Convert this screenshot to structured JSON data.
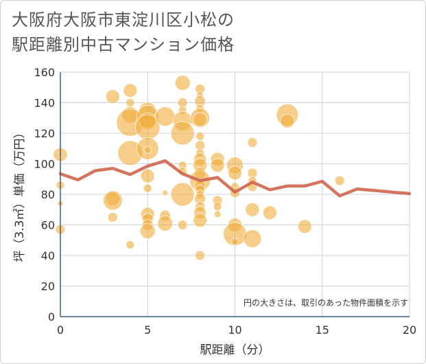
{
  "chart_data": {
    "type": "scatter",
    "title_lines": [
      "大阪府大阪市東淀川区小松の",
      "駅距離別中古マンション価格"
    ],
    "xlabel": "駅距離（分）",
    "ylabel": "坪（3.3㎡）単価（万円）",
    "xlim": [
      0,
      20
    ],
    "ylim": [
      0,
      160
    ],
    "x_ticks": [
      "0",
      "5",
      "10",
      "15",
      "20"
    ],
    "y_ticks": [
      "0",
      "20",
      "40",
      "60",
      "80",
      "100",
      "120",
      "140",
      "160"
    ],
    "grid": true,
    "annotation": "円の大きさは、取引のあった物件面積を示す",
    "colors": {
      "bubble": "#f0ad3c",
      "line": "#d0654e",
      "grid": "#c9d3dc",
      "axis": "#3f5f7a"
    },
    "series": [
      {
        "type": "bubble",
        "points": [
          {
            "x": 0,
            "y": 106,
            "s": 10
          },
          {
            "x": 0,
            "y": 86,
            "s": 6
          },
          {
            "x": 0,
            "y": 74,
            "s": 4
          },
          {
            "x": 0,
            "y": 57,
            "s": 7
          },
          {
            "x": 3,
            "y": 144,
            "s": 10
          },
          {
            "x": 3,
            "y": 77,
            "s": 10
          },
          {
            "x": 3,
            "y": 76,
            "s": 14
          },
          {
            "x": 3,
            "y": 65,
            "s": 7
          },
          {
            "x": 4,
            "y": 148,
            "s": 10
          },
          {
            "x": 4,
            "y": 140,
            "s": 6
          },
          {
            "x": 4,
            "y": 132,
            "s": 12
          },
          {
            "x": 4,
            "y": 127,
            "s": 20
          },
          {
            "x": 4,
            "y": 107,
            "s": 18
          },
          {
            "x": 4,
            "y": 47,
            "s": 6
          },
          {
            "x": 5,
            "y": 135,
            "s": 12
          },
          {
            "x": 5,
            "y": 131,
            "s": 16
          },
          {
            "x": 5,
            "y": 128,
            "s": 12
          },
          {
            "x": 5,
            "y": 124,
            "s": 18
          },
          {
            "x": 5,
            "y": 110,
            "s": 16
          },
          {
            "x": 5,
            "y": 109,
            "s": 5
          },
          {
            "x": 5,
            "y": 92,
            "s": 10
          },
          {
            "x": 5,
            "y": 84,
            "s": 6
          },
          {
            "x": 5,
            "y": 67,
            "s": 10
          },
          {
            "x": 5,
            "y": 64,
            "s": 8
          },
          {
            "x": 5,
            "y": 60,
            "s": 8
          },
          {
            "x": 5,
            "y": 56,
            "s": 11
          },
          {
            "x": 6,
            "y": 131,
            "s": 14
          },
          {
            "x": 6,
            "y": 81,
            "s": 4
          },
          {
            "x": 6,
            "y": 66,
            "s": 8
          },
          {
            "x": 6,
            "y": 61,
            "s": 11
          },
          {
            "x": 7,
            "y": 153,
            "s": 11
          },
          {
            "x": 7,
            "y": 140,
            "s": 7
          },
          {
            "x": 7,
            "y": 135,
            "s": 6
          },
          {
            "x": 7,
            "y": 128,
            "s": 14
          },
          {
            "x": 7,
            "y": 120,
            "s": 17
          },
          {
            "x": 7,
            "y": 99,
            "s": 6
          },
          {
            "x": 7,
            "y": 95,
            "s": 6
          },
          {
            "x": 7,
            "y": 80,
            "s": 17
          },
          {
            "x": 7,
            "y": 60,
            "s": 7
          },
          {
            "x": 8,
            "y": 149,
            "s": 7
          },
          {
            "x": 8,
            "y": 145,
            "s": 5
          },
          {
            "x": 8,
            "y": 141,
            "s": 8
          },
          {
            "x": 8,
            "y": 136,
            "s": 6
          },
          {
            "x": 8,
            "y": 130,
            "s": 14
          },
          {
            "x": 8,
            "y": 129,
            "s": 10
          },
          {
            "x": 8,
            "y": 118,
            "s": 6
          },
          {
            "x": 8,
            "y": 112,
            "s": 7
          },
          {
            "x": 8,
            "y": 107,
            "s": 6
          },
          {
            "x": 8,
            "y": 103,
            "s": 9
          },
          {
            "x": 8,
            "y": 99,
            "s": 10
          },
          {
            "x": 8,
            "y": 94,
            "s": 8
          },
          {
            "x": 8,
            "y": 89,
            "s": 15
          },
          {
            "x": 8,
            "y": 86,
            "s": 8
          },
          {
            "x": 8,
            "y": 83,
            "s": 7
          },
          {
            "x": 8,
            "y": 80,
            "s": 6
          },
          {
            "x": 8,
            "y": 77,
            "s": 8
          },
          {
            "x": 8,
            "y": 72,
            "s": 7
          },
          {
            "x": 8,
            "y": 68,
            "s": 9
          },
          {
            "x": 8,
            "y": 63,
            "s": 10
          },
          {
            "x": 8,
            "y": 40,
            "s": 7
          },
          {
            "x": 9,
            "y": 103,
            "s": 10
          },
          {
            "x": 9,
            "y": 99,
            "s": 10
          },
          {
            "x": 9,
            "y": 76,
            "s": 7
          },
          {
            "x": 9,
            "y": 72,
            "s": 6
          },
          {
            "x": 9,
            "y": 67,
            "s": 5
          },
          {
            "x": 10,
            "y": 99,
            "s": 12
          },
          {
            "x": 10,
            "y": 94,
            "s": 10
          },
          {
            "x": 10,
            "y": 85,
            "s": 6
          },
          {
            "x": 10,
            "y": 81,
            "s": 7
          },
          {
            "x": 10,
            "y": 60,
            "s": 10
          },
          {
            "x": 10,
            "y": 54,
            "s": 17
          },
          {
            "x": 10,
            "y": 49,
            "s": 5
          },
          {
            "x": 11,
            "y": 114,
            "s": 7
          },
          {
            "x": 11,
            "y": 94,
            "s": 7
          },
          {
            "x": 11,
            "y": 89,
            "s": 6
          },
          {
            "x": 11,
            "y": 85,
            "s": 7
          },
          {
            "x": 11,
            "y": 70,
            "s": 10
          },
          {
            "x": 11,
            "y": 51,
            "s": 13
          },
          {
            "x": 12,
            "y": 68,
            "s": 10
          },
          {
            "x": 13,
            "y": 132,
            "s": 16
          },
          {
            "x": 13,
            "y": 128,
            "s": 10
          },
          {
            "x": 14,
            "y": 59,
            "s": 10
          },
          {
            "x": 16,
            "y": 89,
            "s": 7
          }
        ]
      },
      {
        "type": "line",
        "x": [
          0,
          1,
          2,
          3,
          4,
          5,
          6,
          7,
          8,
          9,
          10,
          11,
          12,
          13,
          14,
          15,
          16,
          17,
          18,
          19,
          20
        ],
        "y": [
          93.5,
          89.5,
          95.5,
          97,
          93,
          98.5,
          102,
          93.5,
          89,
          91,
          81.5,
          88,
          83,
          85.5,
          85.5,
          88.5,
          79,
          83.5,
          82.5,
          81.5,
          80.5
        ]
      }
    ]
  }
}
